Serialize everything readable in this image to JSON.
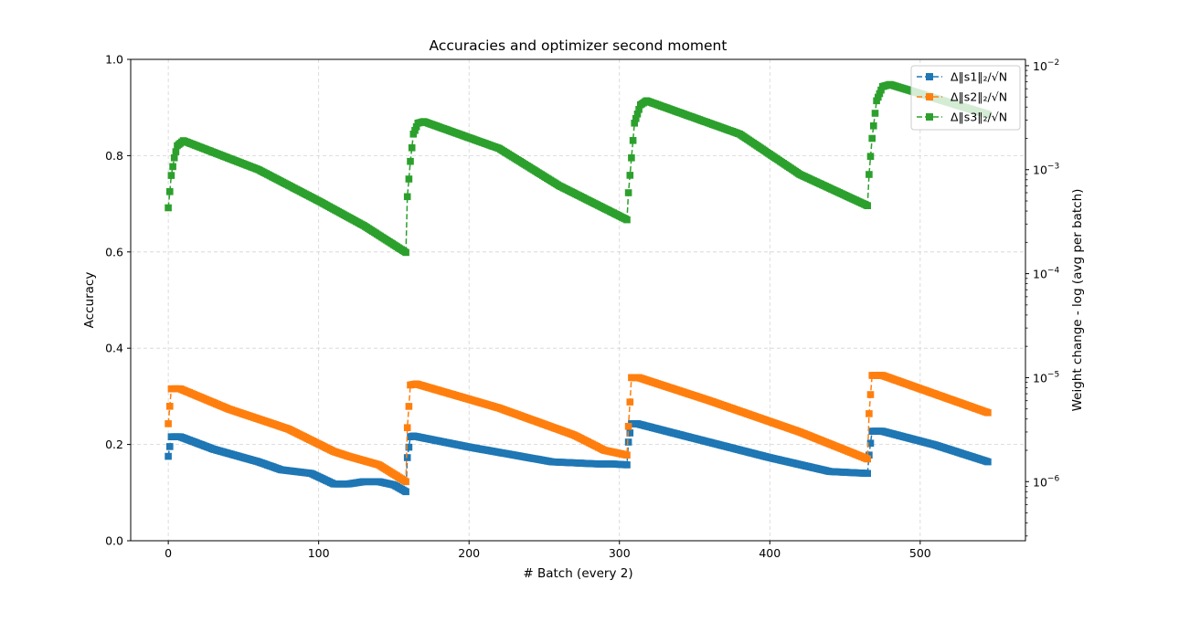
{
  "chart_data": {
    "type": "line",
    "title": "Accuracies and optimizer second moment",
    "xlabel": "# Batch (every 2)",
    "ylabel": "Accuracy",
    "ylabel_right": "Weight change - log (avg per batch)",
    "xlim": [
      -25,
      570
    ],
    "ylim": [
      0.0,
      1.0
    ],
    "ylim_right": [
      2.7e-07,
      0.0115
    ],
    "yscale_right": "log",
    "x_ticks": [
      0,
      100,
      200,
      300,
      400,
      500
    ],
    "x_tick_labels": [
      "0",
      "100",
      "200",
      "300",
      "400",
      "500"
    ],
    "y_ticks": [
      0.0,
      0.2,
      0.4,
      0.6,
      0.8,
      1.0
    ],
    "y_tick_labels": [
      "0.0",
      "0.2",
      "0.4",
      "0.6",
      "0.8",
      "1.0"
    ],
    "y_right_ticks": [
      1e-06,
      1e-05,
      0.0001,
      0.001,
      0.01
    ],
    "y_right_tick_labels": [
      {
        "base": "10",
        "exp": "−6"
      },
      {
        "base": "10",
        "exp": "−5"
      },
      {
        "base": "10",
        "exp": "−4"
      },
      {
        "base": "10",
        "exp": "−3"
      },
      {
        "base": "10",
        "exp": "−2"
      }
    ],
    "grid": true,
    "legend_position": "top-right",
    "series": [
      {
        "name": "Δ‖s1‖₂/√N",
        "color": "#1f77b4",
        "marker": "square",
        "linestyle": "dashed",
        "axis": "right",
        "points": [
          [
            0,
            1.75e-06
          ],
          [
            2,
            2.7e-06
          ],
          [
            8,
            2.7e-06
          ],
          [
            30,
            2.05e-06
          ],
          [
            60,
            1.55e-06
          ],
          [
            75,
            1.3e-06
          ],
          [
            95,
            1.2e-06
          ],
          [
            110,
            9.5e-07
          ],
          [
            120,
            9.5e-07
          ],
          [
            130,
            1e-06
          ],
          [
            140,
            1e-06
          ],
          [
            150,
            9.3e-07
          ],
          [
            158,
            8e-07
          ],
          [
            159,
            1.7e-06
          ],
          [
            161,
            2.7e-06
          ],
          [
            163,
            2.75e-06
          ],
          [
            200,
            2.15e-06
          ],
          [
            230,
            1.8e-06
          ],
          [
            255,
            1.55e-06
          ],
          [
            285,
            1.48e-06
          ],
          [
            295,
            1.48e-06
          ],
          [
            305,
            1.45e-06
          ],
          [
            306,
            2.4e-06
          ],
          [
            308,
            3.6e-06
          ],
          [
            312,
            3.6e-06
          ],
          [
            350,
            2.6e-06
          ],
          [
            400,
            1.7e-06
          ],
          [
            440,
            1.25e-06
          ],
          [
            465,
            1.2e-06
          ],
          [
            466,
            1.8e-06
          ],
          [
            468,
            3.05e-06
          ],
          [
            475,
            3.05e-06
          ],
          [
            510,
            2.25e-06
          ],
          [
            545,
            1.55e-06
          ]
        ]
      },
      {
        "name": "Δ‖s2‖₂/√N",
        "color": "#ff7f0e",
        "marker": "square",
        "linestyle": "dashed",
        "axis": "right",
        "points": [
          [
            0,
            3.6e-06
          ],
          [
            2,
            7.8e-06
          ],
          [
            8,
            7.8e-06
          ],
          [
            40,
            5e-06
          ],
          [
            80,
            3.2e-06
          ],
          [
            110,
            1.95e-06
          ],
          [
            120,
            1.75e-06
          ],
          [
            140,
            1.45e-06
          ],
          [
            158,
            1e-06
          ],
          [
            159,
            3.3e-06
          ],
          [
            161,
            8.5e-06
          ],
          [
            165,
            8.7e-06
          ],
          [
            220,
            5.1e-06
          ],
          [
            270,
            2.8e-06
          ],
          [
            290,
            2e-06
          ],
          [
            305,
            1.8e-06
          ],
          [
            306,
            3.4e-06
          ],
          [
            308,
            1e-05
          ],
          [
            313,
            1e-05
          ],
          [
            360,
            6e-06
          ],
          [
            420,
            3e-06
          ],
          [
            465,
            1.65e-06
          ],
          [
            466,
            4.5e-06
          ],
          [
            468,
            1.05e-05
          ],
          [
            475,
            1.05e-05
          ],
          [
            545,
            4.6e-06
          ]
        ]
      },
      {
        "name": "Δ‖s3‖₂/√N",
        "color": "#2ca02c",
        "marker": "square",
        "linestyle": "dashed",
        "axis": "right",
        "points": [
          [
            0,
            0.00043
          ],
          [
            2,
            0.00088
          ],
          [
            4,
            0.0013
          ],
          [
            6,
            0.0017
          ],
          [
            10,
            0.0019
          ],
          [
            60,
            0.001
          ],
          [
            100,
            0.0005
          ],
          [
            130,
            0.00029
          ],
          [
            158,
            0.00016
          ],
          [
            159,
            0.00055
          ],
          [
            161,
            0.0012
          ],
          [
            163,
            0.0022
          ],
          [
            166,
            0.0028
          ],
          [
            170,
            0.0029
          ],
          [
            220,
            0.0016
          ],
          [
            260,
            0.0007
          ],
          [
            305,
            0.00033
          ],
          [
            306,
            0.0006
          ],
          [
            308,
            0.0013
          ],
          [
            310,
            0.0028
          ],
          [
            314,
            0.0042
          ],
          [
            318,
            0.0046
          ],
          [
            380,
            0.0022
          ],
          [
            420,
            0.0009
          ],
          [
            465,
            0.00045
          ],
          [
            466,
            0.0009
          ],
          [
            468,
            0.002
          ],
          [
            471,
            0.0046
          ],
          [
            475,
            0.0063
          ],
          [
            480,
            0.0066
          ],
          [
            545,
            0.0034
          ]
        ]
      }
    ]
  }
}
